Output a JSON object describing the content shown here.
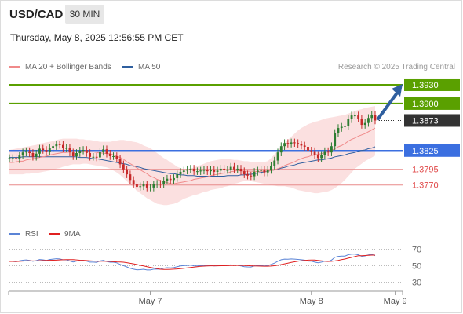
{
  "header": {
    "symbol": "USD/CAD",
    "timeframe": "30 MIN",
    "timestamp": "Thursday, May 8, 2025 12:56:55 PM CET",
    "credit": "Research © 2025 Trading Central"
  },
  "legend": {
    "ma20_label": "MA 20 + Bollinger Bands",
    "ma20_color": "#f08a8a",
    "ma50_label": "MA 50",
    "ma50_color": "#2f5f9f"
  },
  "rsi_legend": {
    "rsi_label": "RSI",
    "rsi_color": "#5b84d6",
    "ma9_label": "9MA",
    "ma9_color": "#e02020"
  },
  "colors": {
    "resistance": "#5aa000",
    "pivot": "#3b6fe0",
    "support": "#e88a8a",
    "current": "#333333",
    "arrow": "#2f5f9f",
    "bull_candle": "#2e7d32",
    "bear_candle": "#c62828",
    "band_fill": "#fbe0e0"
  },
  "chart_data": [
    {
      "type": "candlestick",
      "title": "",
      "ylim": [
        1.3712,
        1.3945
      ],
      "x_tick_labels": [
        {
          "label": "May 7",
          "index": 42
        },
        {
          "label": "May 8",
          "index": 90
        },
        {
          "label": "May 9",
          "index": 115
        }
      ],
      "levels": [
        {
          "kind": "resistance",
          "label": "1.3930",
          "value": 1.393
        },
        {
          "kind": "resistance",
          "label": "1.3900",
          "value": 1.39
        },
        {
          "kind": "current",
          "label": "1.3873",
          "value": 1.3873
        },
        {
          "kind": "pivot",
          "label": "1.3825",
          "value": 1.3825
        },
        {
          "kind": "support",
          "label": "1.3795",
          "value": 1.3795
        },
        {
          "kind": "support",
          "label": "1.3770",
          "value": 1.377
        }
      ],
      "series": [
        {
          "name": "MA 20 + Bollinger Bands"
        },
        {
          "name": "MA 50"
        }
      ],
      "close": [
        1.3813,
        1.3813,
        1.3811,
        1.3817,
        1.3822,
        1.3824,
        1.3821,
        1.3815,
        1.382,
        1.3828,
        1.3826,
        1.3823,
        1.3829,
        1.3832,
        1.3835,
        1.3834,
        1.3829,
        1.3829,
        1.3822,
        1.3816,
        1.3821,
        1.3825,
        1.3826,
        1.3821,
        1.3815,
        1.3815,
        1.3814,
        1.3823,
        1.3827,
        1.382,
        1.3816,
        1.3816,
        1.3812,
        1.3803,
        1.3795,
        1.3787,
        1.3778,
        1.3772,
        1.3767,
        1.3768,
        1.3771,
        1.3766,
        1.3766,
        1.3771,
        1.3772,
        1.3771,
        1.3777,
        1.378,
        1.3778,
        1.3781,
        1.3787,
        1.3791,
        1.3793,
        1.3795,
        1.3796,
        1.3792,
        1.3792,
        1.3793,
        1.3794,
        1.3792,
        1.3794,
        1.3791,
        1.3793,
        1.3796,
        1.3794,
        1.3794,
        1.3799,
        1.3795,
        1.3796,
        1.3792,
        1.3787,
        1.3785,
        1.3784,
        1.3791,
        1.3793,
        1.3794,
        1.379,
        1.3794,
        1.3801,
        1.3809,
        1.3822,
        1.3832,
        1.3837,
        1.3836,
        1.3838,
        1.3837,
        1.3835,
        1.3833,
        1.3831,
        1.3825,
        1.3824,
        1.3818,
        1.3813,
        1.3818,
        1.3824,
        1.3822,
        1.3832,
        1.3853,
        1.3861,
        1.3863,
        1.3864,
        1.3875,
        1.3881,
        1.3881,
        1.3876,
        1.3866,
        1.3869,
        1.3877,
        1.3882,
        1.3873
      ],
      "ma20": [
        1.3806,
        1.3806,
        1.3807,
        1.3808,
        1.3808,
        1.381,
        1.3811,
        1.3812,
        1.3813,
        1.3814,
        1.3815,
        1.3816,
        1.3818,
        1.3819,
        1.382,
        1.3821,
        1.3822,
        1.3822,
        1.3823,
        1.3823,
        1.3823,
        1.3823,
        1.3824,
        1.3824,
        1.3823,
        1.3823,
        1.3822,
        1.3821,
        1.3821,
        1.382,
        1.382,
        1.3818,
        1.3816,
        1.3814,
        1.3811,
        1.3807,
        1.3804,
        1.3801,
        1.3797,
        1.3794,
        1.3791,
        1.3788,
        1.3784,
        1.3782,
        1.3779,
        1.3777,
        1.3775,
        1.3774,
        1.3772,
        1.3772,
        1.3773,
        1.3774,
        1.3775,
        1.3776,
        1.3777,
        1.3779,
        1.378,
        1.3781,
        1.3782,
        1.3783,
        1.3785,
        1.3786,
        1.3787,
        1.3788,
        1.3789,
        1.3789,
        1.3791,
        1.3792,
        1.3793,
        1.3793,
        1.3792,
        1.3792,
        1.3792,
        1.3792,
        1.3791,
        1.3792,
        1.3792,
        1.3792,
        1.3793,
        1.3794,
        1.3796,
        1.3798,
        1.3801,
        1.3803,
        1.3805,
        1.3807,
        1.381,
        1.3812,
        1.3814,
        1.3815,
        1.3817,
        1.3818,
        1.3819,
        1.382,
        1.3822,
        1.3823,
        1.3825,
        1.3828,
        1.3831,
        1.3833,
        1.3836,
        1.384,
        1.3843,
        1.3845,
        1.3848,
        1.385,
        1.3852,
        1.3855,
        1.3858,
        1.3861
      ],
      "ma50": [
        1.3814,
        1.3814,
        1.3814,
        1.3814,
        1.3815,
        1.3815,
        1.3815,
        1.3815,
        1.3815,
        1.3815,
        1.3815,
        1.3815,
        1.3815,
        1.3815,
        1.3815,
        1.3815,
        1.3815,
        1.3815,
        1.3815,
        1.3815,
        1.3815,
        1.3814,
        1.3814,
        1.3814,
        1.3813,
        1.3812,
        1.3812,
        1.3811,
        1.381,
        1.3809,
        1.3808,
        1.3807,
        1.3806,
        1.3805,
        1.3804,
        1.3803,
        1.3801,
        1.38,
        1.3799,
        1.3798,
        1.3796,
        1.3795,
        1.3794,
        1.3793,
        1.3792,
        1.3791,
        1.379,
        1.3789,
        1.3788,
        1.3788,
        1.3787,
        1.3786,
        1.3786,
        1.3785,
        1.3785,
        1.3785,
        1.3784,
        1.3784,
        1.3784,
        1.3784,
        1.3784,
        1.3784,
        1.3784,
        1.3784,
        1.3784,
        1.3785,
        1.3785,
        1.3785,
        1.3785,
        1.3786,
        1.3786,
        1.3787,
        1.3787,
        1.3788,
        1.3789,
        1.379,
        1.3791,
        1.3792,
        1.3793,
        1.3794,
        1.3795,
        1.3797,
        1.3798,
        1.38,
        1.3801,
        1.3802,
        1.3804,
        1.3805,
        1.3806,
        1.3807,
        1.3808,
        1.3809,
        1.381,
        1.381,
        1.3811,
        1.3812,
        1.3813,
        1.3815,
        1.3816,
        1.3817,
        1.3818,
        1.382,
        1.3821,
        1.3822,
        1.3824,
        1.3825,
        1.3826,
        1.3828,
        1.3829,
        1.3831
      ],
      "bollinger_upper": [
        1.3826,
        1.3827,
        1.3828,
        1.3829,
        1.383,
        1.3831,
        1.3832,
        1.3833,
        1.3834,
        1.3836,
        1.3837,
        1.3838,
        1.3839,
        1.384,
        1.3842,
        1.3843,
        1.3844,
        1.3844,
        1.3844,
        1.3844,
        1.3844,
        1.3843,
        1.3843,
        1.3842,
        1.3842,
        1.3841,
        1.384,
        1.3839,
        1.3839,
        1.3839,
        1.3839,
        1.384,
        1.3841,
        1.3842,
        1.3842,
        1.3841,
        1.384,
        1.3839,
        1.3838,
        1.3836,
        1.3833,
        1.3831,
        1.3829,
        1.3825,
        1.3821,
        1.3817,
        1.3813,
        1.381,
        1.3806,
        1.3803,
        1.3799,
        1.3797,
        1.3795,
        1.3795,
        1.3796,
        1.3798,
        1.38,
        1.3802,
        1.3804,
        1.3806,
        1.3808,
        1.3809,
        1.381,
        1.3811,
        1.3811,
        1.3811,
        1.3811,
        1.381,
        1.381,
        1.3809,
        1.3808,
        1.3808,
        1.3807,
        1.3807,
        1.3806,
        1.3806,
        1.3807,
        1.3808,
        1.3813,
        1.3819,
        1.3825,
        1.3831,
        1.3837,
        1.3842,
        1.3847,
        1.3852,
        1.3857,
        1.3861,
        1.3864,
        1.3867,
        1.3869,
        1.3871,
        1.3872,
        1.3874,
        1.3876,
        1.3877,
        1.3878,
        1.3879,
        1.388,
        1.3881,
        1.3882,
        1.3884,
        1.3886,
        1.3888,
        1.389,
        1.3891,
        1.3893,
        1.3894,
        1.3895,
        1.3896
      ],
      "bollinger_lower": [
        1.3787,
        1.3787,
        1.3787,
        1.3787,
        1.3787,
        1.3788,
        1.3788,
        1.3789,
        1.3789,
        1.379,
        1.3791,
        1.3792,
        1.3793,
        1.3794,
        1.3796,
        1.3797,
        1.3799,
        1.38,
        1.3802,
        1.3803,
        1.3803,
        1.3803,
        1.3804,
        1.3804,
        1.3803,
        1.3802,
        1.3801,
        1.38,
        1.3799,
        1.3798,
        1.3796,
        1.3793,
        1.379,
        1.3786,
        1.3781,
        1.3776,
        1.3771,
        1.3766,
        1.3761,
        1.3757,
        1.3753,
        1.3749,
        1.3746,
        1.3743,
        1.374,
        1.3739,
        1.3738,
        1.3738,
        1.3739,
        1.374,
        1.3742,
        1.3745,
        1.3748,
        1.375,
        1.3752,
        1.3754,
        1.3755,
        1.3757,
        1.3759,
        1.376,
        1.3762,
        1.3763,
        1.3764,
        1.3765,
        1.3767,
        1.3768,
        1.377,
        1.3772,
        1.3773,
        1.3775,
        1.3776,
        1.3776,
        1.3776,
        1.3775,
        1.3774,
        1.3773,
        1.3772,
        1.3771,
        1.377,
        1.3769,
        1.3768,
        1.3768,
        1.3768,
        1.3767,
        1.3766,
        1.3764,
        1.3762,
        1.3761,
        1.376,
        1.3759,
        1.3758,
        1.3757,
        1.3757,
        1.3758,
        1.3759,
        1.376,
        1.3762,
        1.3765,
        1.3769,
        1.3773,
        1.3778,
        1.3784,
        1.379,
        1.3796,
        1.38,
        1.3804,
        1.3808,
        1.3811,
        1.3814,
        1.3817
      ]
    },
    {
      "type": "line",
      "title": "",
      "ylim": [
        20,
        80
      ],
      "y_ticks": [
        70,
        50,
        30
      ],
      "series": [
        {
          "name": "RSI"
        },
        {
          "name": "9MA"
        }
      ],
      "rsi": [
        55.2,
        55.2,
        54.9,
        55.9,
        56.7,
        57.0,
        56.4,
        55.3,
        56.2,
        57.5,
        57.1,
        56.4,
        57.5,
        58.0,
        58.5,
        58.2,
        57.1,
        57.1,
        55.7,
        54.6,
        55.6,
        56.4,
        56.6,
        55.5,
        54.4,
        54.4,
        54.1,
        55.9,
        56.6,
        55.1,
        54.3,
        54.3,
        53.5,
        51.6,
        50.1,
        48.6,
        46.9,
        45.8,
        45.0,
        45.2,
        45.7,
        44.9,
        44.9,
        45.8,
        45.9,
        45.8,
        47.0,
        47.6,
        47.3,
        47.7,
        48.9,
        49.7,
        50.1,
        50.4,
        50.7,
        49.9,
        49.8,
        50.0,
        50.2,
        49.9,
        50.2,
        49.7,
        50.0,
        50.6,
        50.2,
        50.3,
        51.1,
        50.4,
        50.6,
        49.8,
        48.9,
        48.6,
        48.5,
        49.7,
        50.1,
        50.3,
        49.7,
        50.3,
        51.6,
        53.1,
        55.4,
        57.2,
        58.0,
        57.9,
        58.2,
        58.0,
        57.6,
        57.2,
        56.8,
        55.6,
        55.5,
        54.4,
        53.6,
        54.4,
        55.5,
        55.1,
        56.8,
        60.2,
        61.3,
        61.6,
        61.7,
        63.3,
        64.1,
        64.1,
        63.2,
        61.4,
        61.9,
        63.1,
        63.8,
        62.2
      ],
      "ma9": [
        55.2,
        55.2,
        55.1,
        55.3,
        55.6,
        55.8,
        55.9,
        55.8,
        55.8,
        56.1,
        56.3,
        56.5,
        56.6,
        56.7,
        56.8,
        57.0,
        57.2,
        57.3,
        57.4,
        57.3,
        57.0,
        56.7,
        56.6,
        56.3,
        56.0,
        55.7,
        55.5,
        55.4,
        55.4,
        55.3,
        55.2,
        54.9,
        54.7,
        54.6,
        54.3,
        53.7,
        53.0,
        52.3,
        51.4,
        50.5,
        49.7,
        48.9,
        48.0,
        47.2,
        46.4,
        45.7,
        45.4,
        45.4,
        45.6,
        45.8,
        46.1,
        46.5,
        46.9,
        47.4,
        47.9,
        48.4,
        48.9,
        49.3,
        49.5,
        49.8,
        49.9,
        49.9,
        49.9,
        50.0,
        50.0,
        50.1,
        50.2,
        50.3,
        50.4,
        50.5,
        50.3,
        50.1,
        49.9,
        49.7,
        49.6,
        49.5,
        49.4,
        49.4,
        49.6,
        50.0,
        50.6,
        51.4,
        52.3,
        53.1,
        54.0,
        54.8,
        55.5,
        56.0,
        56.5,
        56.8,
        56.9,
        56.9,
        56.5,
        56.0,
        55.5,
        55.2,
        55.3,
        55.8,
        56.5,
        57.4,
        58.1,
        59.1,
        60.1,
        61.1,
        62.1,
        62.2,
        62.4,
        62.6,
        62.9,
        62.9
      ]
    }
  ]
}
